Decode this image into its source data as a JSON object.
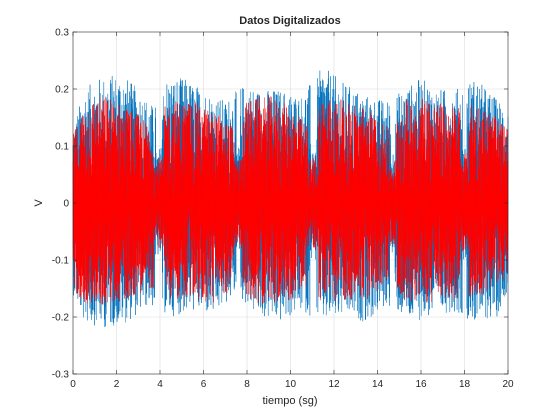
{
  "chart_data": {
    "type": "line",
    "title": "Datos Digitalizados",
    "xlabel": "tiempo (sg)",
    "ylabel": "V",
    "xlim": [
      0,
      20
    ],
    "ylim": [
      -0.3,
      0.3
    ],
    "xticks": [
      "0",
      "2",
      "4",
      "6",
      "8",
      "10",
      "12",
      "14",
      "16",
      "18",
      "20"
    ],
    "yticks": [
      "-0.3",
      "-0.2",
      "-0.1",
      "0",
      "0.1",
      "0.2",
      "0.3"
    ],
    "grid": true,
    "legend": "none",
    "series": [
      {
        "color": "#0072bd",
        "style": "dense oscillating signal, bursts with short pauses",
        "bursts": [
          [
            0,
            3.8
          ],
          [
            4.1,
            7.5
          ],
          [
            7.7,
            10.9
          ],
          [
            11.2,
            14.6
          ],
          [
            14.8,
            17.9
          ],
          [
            18.1,
            20
          ]
        ],
        "envelope_max": [
          [
            0,
            0.13
          ],
          [
            0.5,
            0.2
          ],
          [
            1.2,
            0.22
          ],
          [
            2.2,
            0.23
          ],
          [
            3.0,
            0.2
          ],
          [
            3.7,
            0.17
          ],
          [
            4.3,
            0.22
          ],
          [
            5.1,
            0.22
          ],
          [
            6.0,
            0.2
          ],
          [
            7.0,
            0.18
          ],
          [
            7.9,
            0.21
          ],
          [
            8.5,
            0.2
          ],
          [
            9.5,
            0.2
          ],
          [
            10.5,
            0.19
          ],
          [
            11.5,
            0.24
          ],
          [
            12.5,
            0.21
          ],
          [
            13.5,
            0.19
          ],
          [
            14.4,
            0.18
          ],
          [
            15.2,
            0.2
          ],
          [
            16.0,
            0.22
          ],
          [
            16.8,
            0.2
          ],
          [
            17.6,
            0.2
          ],
          [
            18.5,
            0.22
          ],
          [
            19.3,
            0.19
          ],
          [
            20,
            0.17
          ]
        ],
        "envelope_min": [
          [
            0,
            -0.16
          ],
          [
            0.5,
            -0.21
          ],
          [
            1.5,
            -0.22
          ],
          [
            2.5,
            -0.21
          ],
          [
            3.5,
            -0.18
          ],
          [
            4.5,
            -0.2
          ],
          [
            5.5,
            -0.19
          ],
          [
            6.5,
            -0.2
          ],
          [
            7.5,
            -0.16
          ],
          [
            8.5,
            -0.2
          ],
          [
            9.5,
            -0.21
          ],
          [
            10.5,
            -0.19
          ],
          [
            11.5,
            -0.21
          ],
          [
            12.5,
            -0.2
          ],
          [
            13.5,
            -0.21
          ],
          [
            14.5,
            -0.18
          ],
          [
            15.5,
            -0.21
          ],
          [
            16.5,
            -0.2
          ],
          [
            17.5,
            -0.19
          ],
          [
            18.5,
            -0.21
          ],
          [
            19.5,
            -0.2
          ],
          [
            20,
            -0.15
          ]
        ]
      },
      {
        "color": "#ff0000",
        "style": "dense oscillating signal, bursts with short pauses",
        "bursts": [
          [
            0,
            3.7
          ],
          [
            4.2,
            7.4
          ],
          [
            7.8,
            10.8
          ],
          [
            11.3,
            14.5
          ],
          [
            14.9,
            17.8
          ],
          [
            18.2,
            20
          ]
        ],
        "envelope_max": [
          [
            0,
            0.12
          ],
          [
            0.6,
            0.18
          ],
          [
            1.5,
            0.19
          ],
          [
            2.5,
            0.17
          ],
          [
            3.5,
            0.14
          ],
          [
            4.5,
            0.18
          ],
          [
            5.5,
            0.18
          ],
          [
            6.5,
            0.16
          ],
          [
            7.3,
            0.14
          ],
          [
            8.0,
            0.18
          ],
          [
            9.0,
            0.19
          ],
          [
            10.0,
            0.17
          ],
          [
            10.7,
            0.14
          ],
          [
            11.5,
            0.19
          ],
          [
            12.5,
            0.18
          ],
          [
            13.5,
            0.17
          ],
          [
            14.4,
            0.13
          ],
          [
            15.2,
            0.18
          ],
          [
            16.2,
            0.19
          ],
          [
            17.2,
            0.17
          ],
          [
            18.5,
            0.18
          ],
          [
            19.5,
            0.15
          ],
          [
            20,
            0.13
          ]
        ],
        "envelope_min": [
          [
            0,
            -0.15
          ],
          [
            0.6,
            -0.18
          ],
          [
            1.5,
            -0.18
          ],
          [
            2.5,
            -0.17
          ],
          [
            3.5,
            -0.15
          ],
          [
            4.5,
            -0.17
          ],
          [
            5.5,
            -0.17
          ],
          [
            6.5,
            -0.18
          ],
          [
            7.3,
            -0.15
          ],
          [
            8.0,
            -0.17
          ],
          [
            9.0,
            -0.18
          ],
          [
            10.0,
            -0.17
          ],
          [
            10.7,
            -0.15
          ],
          [
            11.5,
            -0.18
          ],
          [
            12.5,
            -0.17
          ],
          [
            13.5,
            -0.17
          ],
          [
            14.4,
            -0.14
          ],
          [
            15.2,
            -0.17
          ],
          [
            16.2,
            -0.18
          ],
          [
            17.2,
            -0.17
          ],
          [
            18.5,
            -0.17
          ],
          [
            19.5,
            -0.15
          ],
          [
            20,
            -0.12
          ]
        ]
      }
    ]
  }
}
